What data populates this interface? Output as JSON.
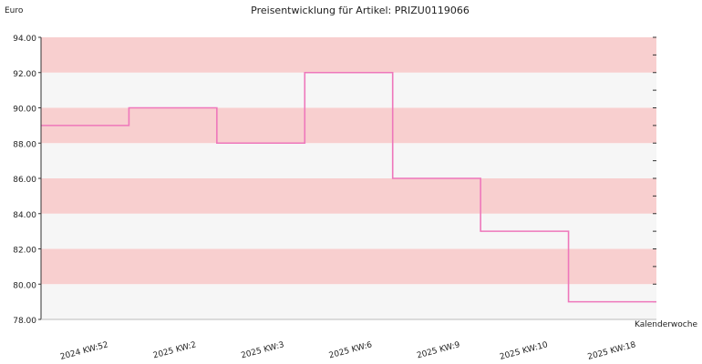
{
  "chart_data": {
    "type": "line",
    "step": true,
    "title": "Preisentwicklung für Artikel: PRIZU0119066",
    "ylabel": "Euro",
    "xlabel": "Kalenderwoche",
    "ylim": [
      78,
      94
    ],
    "y_ticks": [
      "94.00",
      "92.00",
      "90.00",
      "88.00",
      "86.00",
      "84.00",
      "82.00",
      "80.00",
      "78.00"
    ],
    "categories": [
      "2024 KW:52",
      "2025 KW:2",
      "2025 KW:3",
      "2025 KW:6",
      "2025 KW:9",
      "2025 KW:10",
      "2025 KW:18"
    ],
    "values": [
      89,
      90,
      88,
      92,
      86,
      83,
      79
    ],
    "grid": true,
    "colors": {
      "line": "#ee77bb",
      "band_a": "#f8cfcf",
      "band_b": "#f6f6f6",
      "axis": "#333333"
    }
  }
}
